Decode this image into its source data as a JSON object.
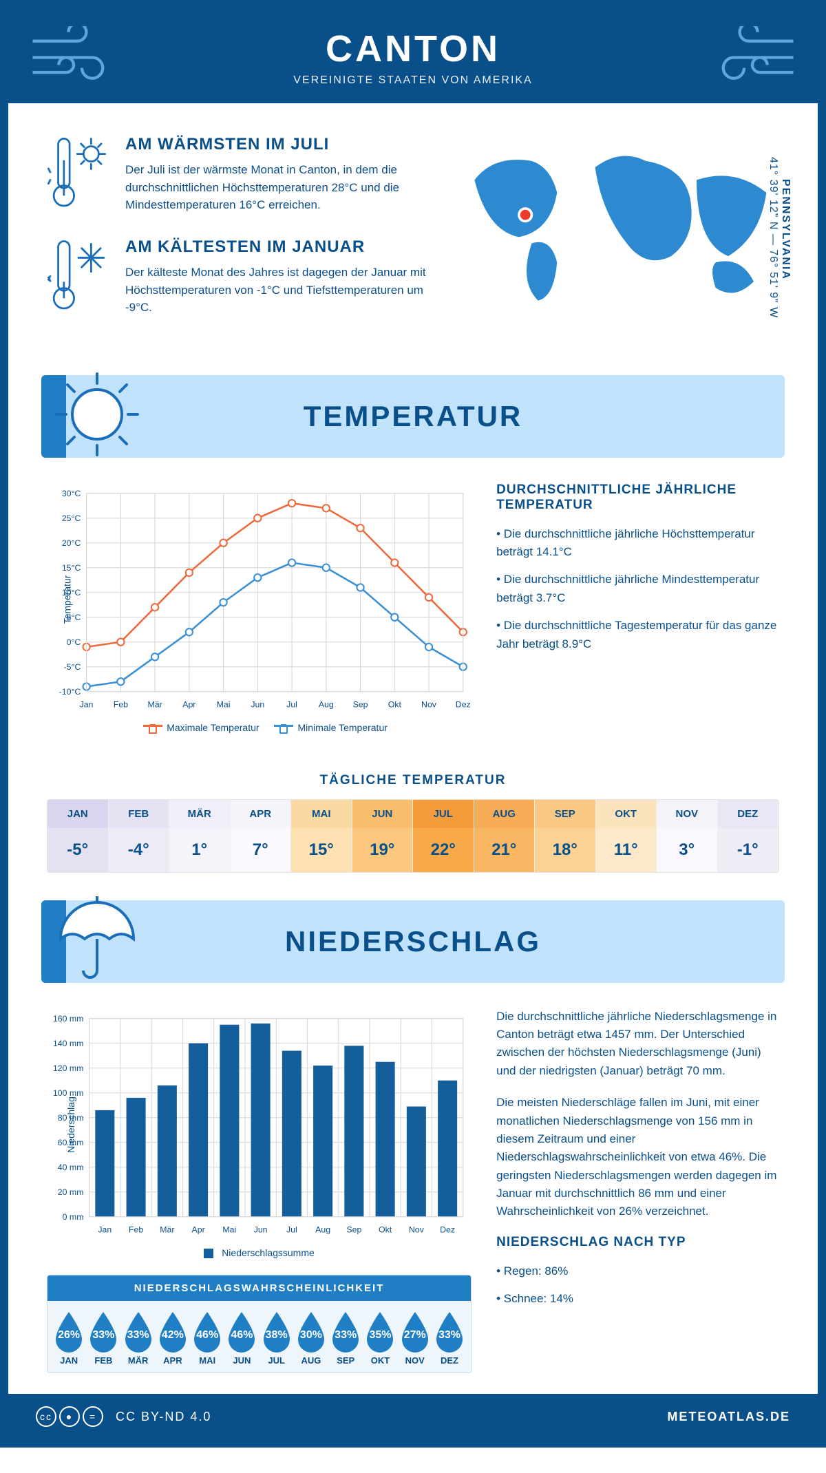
{
  "colors": {
    "primary": "#094f8a",
    "accent": "#1f7ec4",
    "banner_bg": "#c1e2fb",
    "max_series": "#ed6a3d",
    "min_series": "#3b90d4",
    "bar_fill": "#155e9c",
    "grid": "#d6d6d6",
    "white": "#ffffff",
    "marker_red": "#ef3a2b"
  },
  "header": {
    "title": "CANTON",
    "subtitle": "VEREINIGTE STAATEN VON AMERIKA"
  },
  "facts": {
    "warm": {
      "title": "AM WÄRMSTEN IM JULI",
      "body": "Der Juli ist der wärmste Monat in Canton, in dem die durchschnittlichen Höchsttemperaturen 28°C und die Mindesttemperaturen 16°C erreichen."
    },
    "cold": {
      "title": "AM KÄLTESTEN IM JANUAR",
      "body": "Der kälteste Monat des Jahres ist dagegen der Januar mit Höchsttemperaturen von -1°C und Tiefsttemperaturen um -9°C."
    }
  },
  "location": {
    "state": "PENNSYLVANIA",
    "coords": "41° 39' 12\" N — 76° 51' 9\" W"
  },
  "sections": {
    "temperature": "TEMPERATUR",
    "precipitation": "NIEDERSCHLAG"
  },
  "temp_chart": {
    "type": "line",
    "months": [
      "Jan",
      "Feb",
      "Mär",
      "Apr",
      "Mai",
      "Jun",
      "Jul",
      "Aug",
      "Sep",
      "Okt",
      "Nov",
      "Dez"
    ],
    "max": [
      -1,
      0,
      7,
      14,
      20,
      25,
      28,
      27,
      23,
      16,
      9,
      2
    ],
    "min": [
      -9,
      -8,
      -3,
      2,
      8,
      13,
      16,
      15,
      11,
      5,
      -1,
      -5
    ],
    "ylim": [
      -10,
      30
    ],
    "ytick_step": 5,
    "y_label": "Temperatur",
    "y_suffix": "°C",
    "legend_max": "Maximale Temperatur",
    "legend_min": "Minimale Temperatur",
    "grid_color": "#d6d6d6",
    "line_width": 2.5,
    "marker_size": 5
  },
  "temp_text": {
    "heading": "DURCHSCHNITTLICHE JÄHRLICHE TEMPERATUR",
    "bullets": [
      "Die durchschnittliche jährliche Höchsttemperatur beträgt 14.1°C",
      "Die durchschnittliche jährliche Mindesttemperatur beträgt 3.7°C",
      "Die durchschnittliche Tagestemperatur für das ganze Jahr beträgt 8.9°C"
    ]
  },
  "daily": {
    "title": "TÄGLICHE TEMPERATUR",
    "months": [
      "JAN",
      "FEB",
      "MÄR",
      "APR",
      "MAI",
      "JUN",
      "JUL",
      "AUG",
      "SEP",
      "OKT",
      "NOV",
      "DEZ"
    ],
    "values": [
      "-5°",
      "-4°",
      "1°",
      "7°",
      "15°",
      "19°",
      "22°",
      "21°",
      "18°",
      "11°",
      "3°",
      "-1°"
    ],
    "head_colors": [
      "#d8d6ef",
      "#e4e2f3",
      "#f0eef9",
      "#f6f4fb",
      "#fbd9a2",
      "#f9bd6e",
      "#f49b3c",
      "#f6ab56",
      "#f9c884",
      "#fbe3be",
      "#f5f3fa",
      "#e9e7f4"
    ],
    "val_colors": [
      "#e3e1f2",
      "#ecebf6",
      "#f6f4fb",
      "#fbf9fd",
      "#fde1b0",
      "#fbc77d",
      "#f7a949",
      "#f9b763",
      "#fbd293",
      "#fde9c9",
      "#faf8fc",
      "#efeef7"
    ]
  },
  "precip_chart": {
    "type": "bar",
    "months": [
      "Jan",
      "Feb",
      "Mär",
      "Apr",
      "Mai",
      "Jun",
      "Jul",
      "Aug",
      "Sep",
      "Okt",
      "Nov",
      "Dez"
    ],
    "values_mm": [
      86,
      96,
      106,
      140,
      155,
      156,
      134,
      122,
      138,
      125,
      89,
      110
    ],
    "ylim": [
      0,
      160
    ],
    "ytick_step": 20,
    "y_label": "Niederschlag",
    "y_suffix": " mm",
    "bar_color": "#155e9c",
    "grid_color": "#d6d6d6",
    "bar_width_ratio": 0.62,
    "legend": "Niederschlagssumme"
  },
  "precip_text": {
    "para1": "Die durchschnittliche jährliche Niederschlagsmenge in Canton beträgt etwa 1457 mm. Der Unterschied zwischen der höchsten Niederschlagsmenge (Juni) und der niedrigsten (Januar) beträgt 70 mm.",
    "para2": "Die meisten Niederschläge fallen im Juni, mit einer monatlichen Niederschlagsmenge von 156 mm in diesem Zeitraum und einer Niederschlagswahrscheinlichkeit von etwa 46%. Die geringsten Niederschlagsmengen werden dagegen im Januar mit durchschnittlich 86 mm und einer Wahrscheinlichkeit von 26% verzeichnet.",
    "type_heading": "NIEDERSCHLAG NACH TYP",
    "type_bullets": [
      "Regen: 86%",
      "Schnee: 14%"
    ]
  },
  "prob": {
    "title": "NIEDERSCHLAGSWAHRSCHEINLICHKEIT",
    "months": [
      "JAN",
      "FEB",
      "MÄR",
      "APR",
      "MAI",
      "JUN",
      "JUL",
      "AUG",
      "SEP",
      "OKT",
      "NOV",
      "DEZ"
    ],
    "values": [
      "26%",
      "33%",
      "33%",
      "42%",
      "46%",
      "46%",
      "38%",
      "30%",
      "33%",
      "35%",
      "27%",
      "33%"
    ],
    "drop_color": "#1f7ec4"
  },
  "footer": {
    "license": "CC BY-ND 4.0",
    "site": "METEOATLAS.DE"
  }
}
